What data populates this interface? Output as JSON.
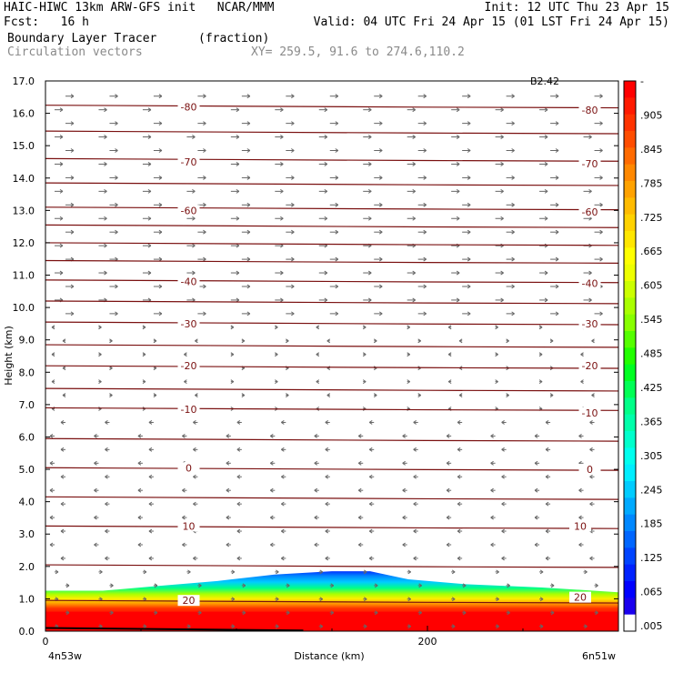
{
  "header": {
    "line1_left": "HAIC-HIWC 13km ARW-GFS init   NCAR/MMM",
    "line1_right": "Init: 12 UTC Thu 23 Apr 15",
    "line2_left": "Fcst:   16 h",
    "line2_right": "Valid: 04 UTC Fri 24 Apr 15 (01 LST Fri 24 Apr 15)",
    "field_name": "Boundary Layer Tracer",
    "field_units": "(fraction)",
    "vector_name": "Circulation vectors",
    "xy_range": "XY= 259.5, 91.6 to 274.6,110.2"
  },
  "chart_data": {
    "type": "heatmap",
    "title": "Boundary Layer Tracer",
    "units": "(fraction)",
    "ylabel": "Height (km)",
    "xlabel": "Distance (km)",
    "ylim": [
      0,
      17
    ],
    "xlim": [
      0,
      300
    ],
    "y_ticks": [
      "0.0",
      "1.0",
      "2.0",
      "3.0",
      "4.0",
      "5.0",
      "6.0",
      "7.0",
      "8.0",
      "9.0",
      "10.0",
      "11.0",
      "12.0",
      "13.0",
      "14.0",
      "15.0",
      "16.0",
      "17.0"
    ],
    "x_ticks": [
      {
        "value": 0,
        "label": "0"
      },
      {
        "value": 200,
        "label": "200"
      }
    ],
    "x_endpoints": [
      "4n53w",
      "6n51w"
    ],
    "top_right_label": "B2.42",
    "colorbar": {
      "labels": [
        "-",
        ".905",
        ".845",
        ".785",
        ".725",
        ".665",
        ".605",
        ".545",
        ".485",
        ".425",
        ".365",
        ".305",
        ".245",
        ".185",
        ".125",
        ".065",
        ".005"
      ],
      "colors": [
        "#ff0000",
        "#ff1a00",
        "#ff3300",
        "#ff4d00",
        "#ff6a00",
        "#ff8800",
        "#ffa200",
        "#ffbb00",
        "#ffd200",
        "#ffe600",
        "#ffff00",
        "#eeff00",
        "#ccff00",
        "#aaff00",
        "#88ff00",
        "#55ff00",
        "#22ff00",
        "#00ff22",
        "#00ff55",
        "#00ff88",
        "#00ffaa",
        "#00ffcc",
        "#00ffee",
        "#00eeff",
        "#00ccff",
        "#00aaff",
        "#0088ff",
        "#0066ff",
        "#0044ff",
        "#0022ff",
        "#0000ff",
        "#1a00ee",
        "#ffffff"
      ]
    },
    "temperature_contours": [
      {
        "label": "-80",
        "height_km": 16.25,
        "label_at": [
          [
            75,
            16.2
          ],
          [
            285,
            16.1
          ]
        ]
      },
      {
        "label": "",
        "height_km": 15.45,
        "label_at": []
      },
      {
        "label": "-70",
        "height_km": 14.6,
        "label_at": [
          [
            75,
            14.5
          ],
          [
            285,
            14.45
          ]
        ]
      },
      {
        "label": "",
        "height_km": 13.85,
        "label_at": []
      },
      {
        "label": "-60",
        "height_km": 13.1,
        "label_at": [
          [
            75,
            13.0
          ],
          [
            285,
            12.95
          ]
        ]
      },
      {
        "label": "",
        "height_km": 12.55,
        "label_at": []
      },
      {
        "label": "",
        "height_km": 12.0,
        "label_at": []
      },
      {
        "label": "",
        "height_km": 11.45,
        "label_at": []
      },
      {
        "label": "-40",
        "height_km": 10.85,
        "label_at": [
          [
            75,
            10.8
          ],
          [
            285,
            10.75
          ]
        ]
      },
      {
        "label": "",
        "height_km": 10.2,
        "label_at": []
      },
      {
        "label": "-30",
        "height_km": 9.55,
        "label_at": [
          [
            75,
            9.5
          ],
          [
            285,
            9.5
          ]
        ]
      },
      {
        "label": "",
        "height_km": 8.85,
        "label_at": []
      },
      {
        "label": "-20",
        "height_km": 8.2,
        "label_at": [
          [
            75,
            8.2
          ],
          [
            285,
            8.2
          ]
        ]
      },
      {
        "label": "",
        "height_km": 7.5,
        "label_at": []
      },
      {
        "label": "-10",
        "height_km": 6.9,
        "label_at": [
          [
            75,
            6.85
          ],
          [
            285,
            6.75
          ]
        ]
      },
      {
        "label": "",
        "height_km": 5.95,
        "label_at": []
      },
      {
        "label": "0",
        "height_km": 5.05,
        "label_at": [
          [
            75,
            5.05
          ],
          [
            285,
            5.0
          ]
        ]
      },
      {
        "label": "",
        "height_km": 4.15,
        "label_at": []
      },
      {
        "label": "10",
        "height_km": 3.25,
        "label_at": [
          [
            75,
            3.25
          ],
          [
            280,
            3.25
          ]
        ]
      },
      {
        "label": "",
        "height_km": 2.05,
        "label_at": []
      },
      {
        "label": "20",
        "height_km": 0.95,
        "label_at": [
          [
            75,
            0.95
          ],
          [
            280,
            1.05
          ]
        ]
      }
    ],
    "boundary_layer_top_km": [
      {
        "x": 0,
        "y": 1.25
      },
      {
        "x": 30,
        "y": 1.25
      },
      {
        "x": 60,
        "y": 1.4
      },
      {
        "x": 90,
        "y": 1.55
      },
      {
        "x": 120,
        "y": 1.75
      },
      {
        "x": 150,
        "y": 1.85
      },
      {
        "x": 170,
        "y": 1.85
      },
      {
        "x": 190,
        "y": 1.6
      },
      {
        "x": 220,
        "y": 1.45
      },
      {
        "x": 260,
        "y": 1.35
      },
      {
        "x": 300,
        "y": 1.2
      }
    ]
  }
}
